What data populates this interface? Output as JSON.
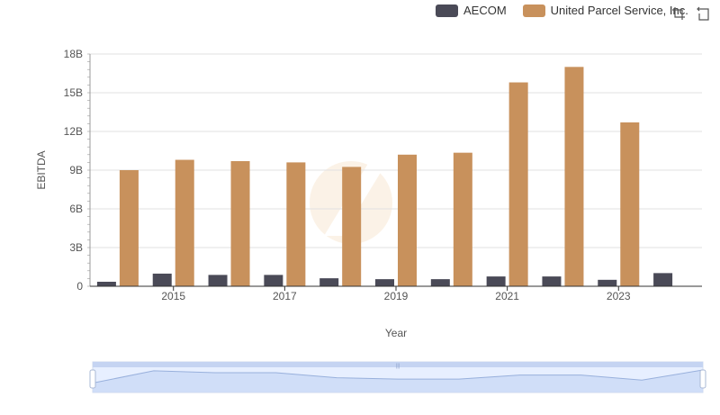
{
  "legend": {
    "items": [
      {
        "label": "AECOM",
        "color": "#4a4a57"
      },
      {
        "label": "United Parcel Service, Inc.",
        "color": "#c8915c"
      }
    ]
  },
  "toolbox": {
    "icons": [
      "zoom-icon",
      "restore-icon"
    ]
  },
  "chart_data": {
    "type": "bar",
    "categories": [
      "2014",
      "2015",
      "2016",
      "2017",
      "2018",
      "2019",
      "2020",
      "2021",
      "2022",
      "2023",
      "2024"
    ],
    "series": [
      {
        "name": "AECOM",
        "color": "#4a4a57",
        "values": [
          0.35,
          0.98,
          0.88,
          0.88,
          0.62,
          0.55,
          0.55,
          0.76,
          0.76,
          0.5,
          1.02
        ]
      },
      {
        "name": "United Parcel Service, Inc.",
        "color": "#c8915c",
        "values": [
          9.0,
          9.8,
          9.7,
          9.6,
          9.25,
          10.2,
          10.35,
          15.8,
          17.0,
          12.7,
          null
        ]
      }
    ],
    "xlabel": "Year",
    "ylabel": "EBITDA",
    "ylim": [
      0,
      18
    ],
    "yticks": [
      0,
      3,
      6,
      9,
      12,
      15,
      18
    ],
    "ytick_labels": [
      "0",
      "3B",
      "6B",
      "9B",
      "12B",
      "15B",
      "18B"
    ],
    "xtick_labels_shown": [
      "2015",
      "2017",
      "2019",
      "2021",
      "2023"
    ],
    "grid": true,
    "legend_position": "top-right",
    "zoom_slider": true
  }
}
